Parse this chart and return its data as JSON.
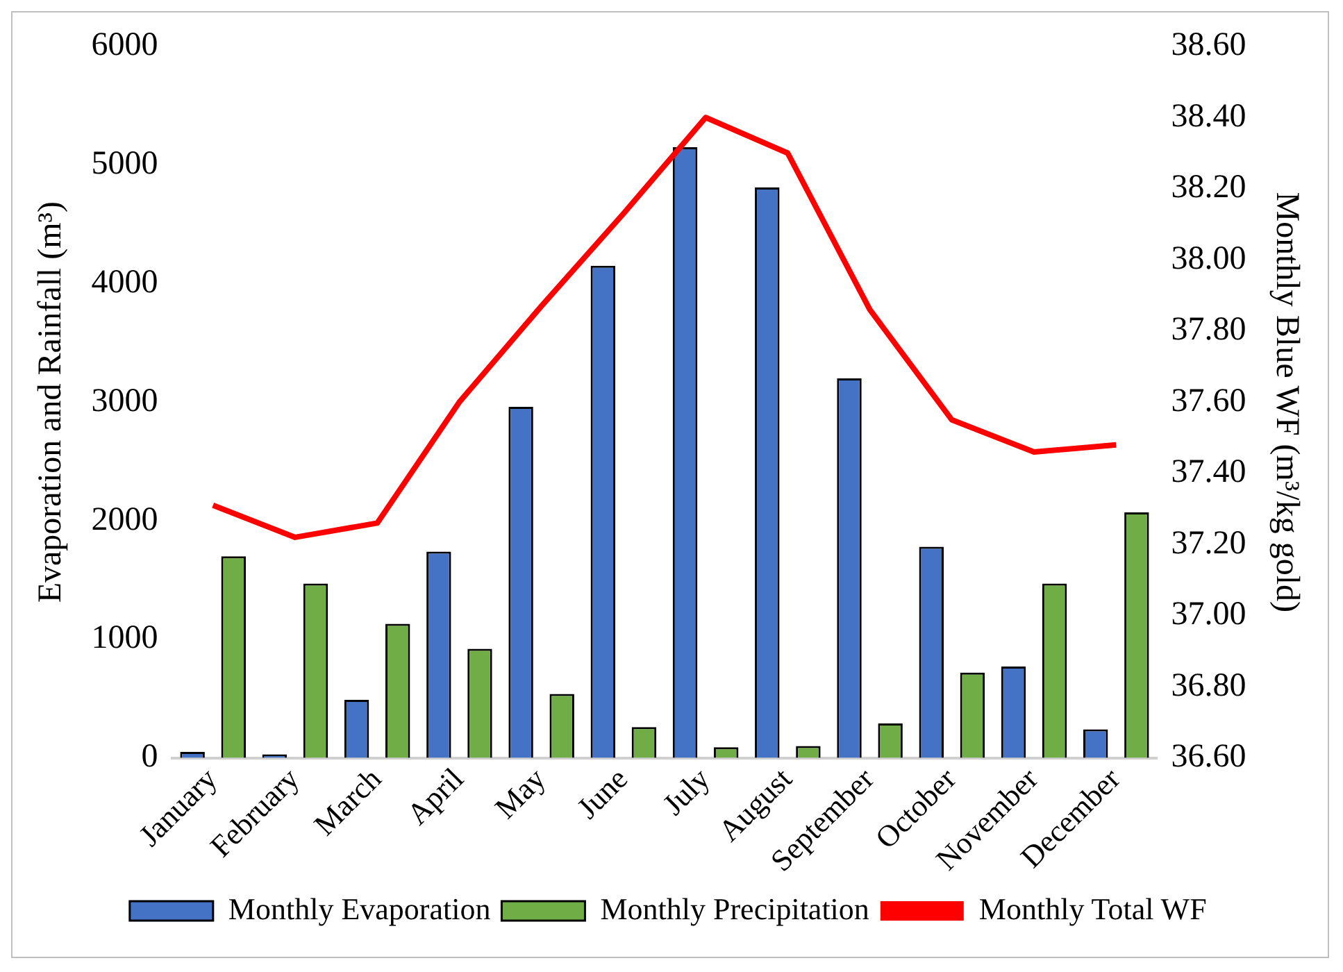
{
  "chart_data": {
    "type": "bar",
    "categories": [
      "January",
      "February",
      "March",
      "April",
      "May",
      "June",
      "July",
      "August",
      "September",
      "October",
      "November",
      "December"
    ],
    "ylabel": "Evaporation and Rainfall (m³)",
    "y2label": "Monthly Blue WF (m³/kg gold)",
    "ylim": [
      0,
      6000
    ],
    "yticks": [
      0,
      1000,
      2000,
      3000,
      4000,
      5000,
      6000
    ],
    "y2lim": [
      36.6,
      38.6
    ],
    "y2ticks": [
      {
        "value": 36.6,
        "label": "36.60"
      },
      {
        "value": 36.8,
        "label": "36.80"
      },
      {
        "value": 37,
        "label": "37.00"
      },
      {
        "value": 37.2,
        "label": "37.20"
      },
      {
        "value": 37.4,
        "label": "37.40"
      },
      {
        "value": 37.6,
        "label": "37.60"
      },
      {
        "value": 37.8,
        "label": "37.80"
      },
      {
        "value": 38,
        "label": "38.00"
      },
      {
        "value": 38.2,
        "label": "38.20"
      },
      {
        "value": 38.4,
        "label": "38.40"
      },
      {
        "value": 38.6,
        "label": "38.60"
      }
    ],
    "grid": false,
    "legend": "bottom",
    "marker": "none",
    "series": [
      {
        "name": "Monthly Evaporation",
        "color": "#4472c4",
        "values": [
          50,
          30,
          490,
          1740,
          2960,
          4150,
          5150,
          4810,
          3200,
          1780,
          770,
          240
        ]
      },
      {
        "name": "Monthly Precipitation",
        "color": "#70ad47",
        "values": [
          1700,
          1470,
          1130,
          920,
          540,
          260,
          90,
          100,
          290,
          720,
          1470,
          2070
        ]
      },
      {
        "name": "Monthly Total WF",
        "color": "#ff0000",
        "type": "line",
        "axis": "y2",
        "line_style": "solid",
        "values": [
          37.31,
          37.22,
          37.26,
          37.6,
          37.87,
          38.13,
          38.4,
          38.3,
          37.86,
          37.55,
          37.46,
          37.48
        ]
      }
    ]
  }
}
